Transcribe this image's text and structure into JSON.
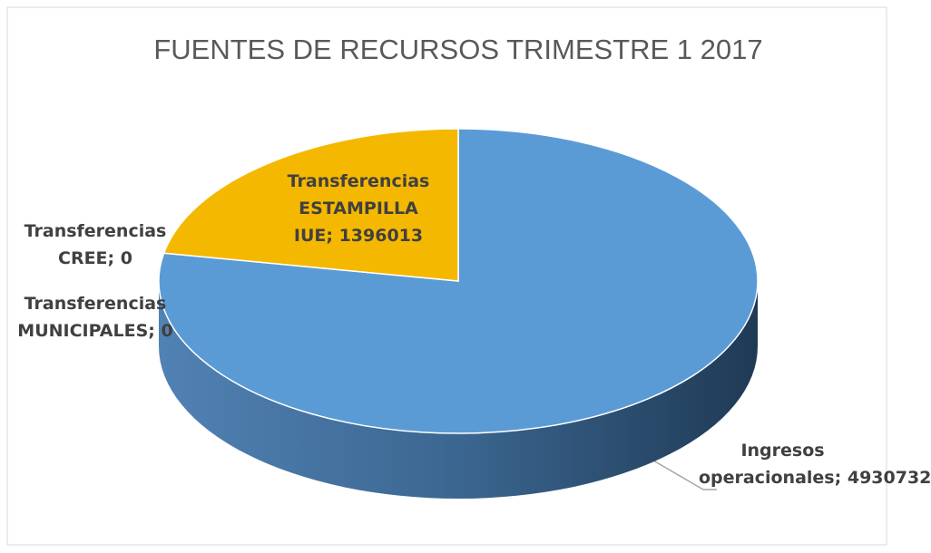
{
  "chart_data": {
    "type": "pie",
    "title": "FUENTES DE RECURSOS TRIMESTRE 1  2017",
    "categories": [
      "Ingresos operacionales",
      "Transferencias ESTAMPILLA IUE",
      "Transferencias CREE",
      "Transferencias MUNICIPALES"
    ],
    "values": [
      4930732,
      1396013,
      0,
      0
    ],
    "colors": [
      "#5b9bd5",
      "#f5b800",
      "#a5a5a5",
      "#4472c4"
    ],
    "label_separator": "; "
  }
}
